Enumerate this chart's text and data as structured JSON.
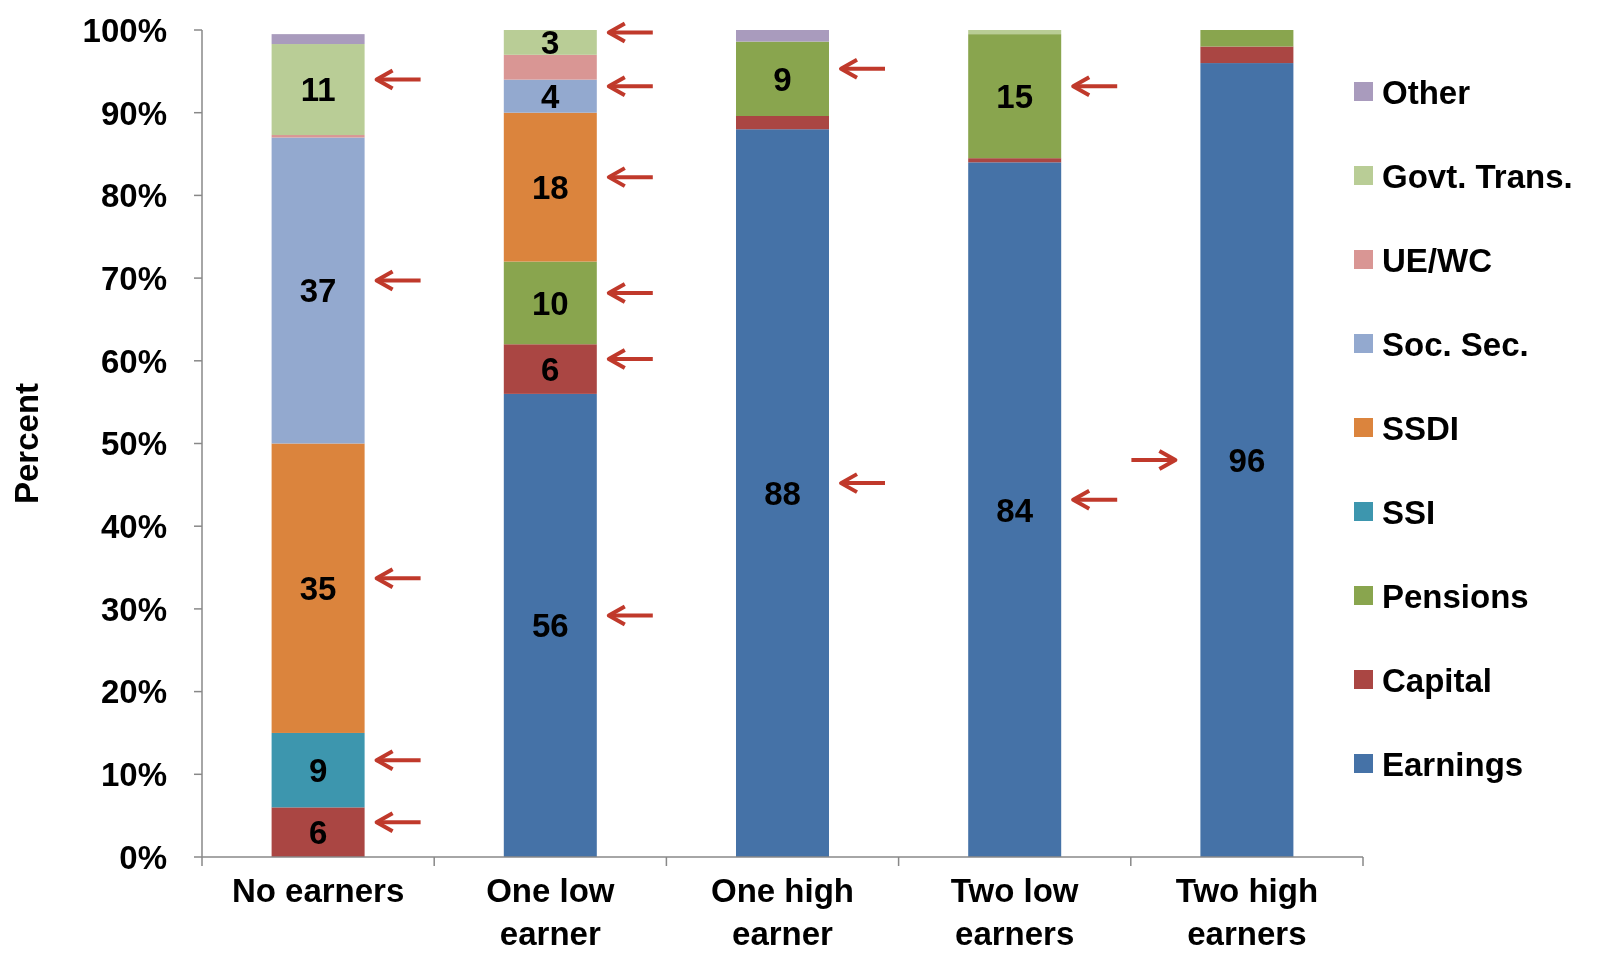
{
  "chart_data": {
    "type": "bar",
    "stacked": true,
    "ylabel": "Percent",
    "categories": [
      "No earners",
      "One low earner",
      "One high earner",
      "Two low earners",
      "Two high earners"
    ],
    "ylim": [
      0,
      100
    ],
    "yticks": [
      {
        "value": 0,
        "label": "0%"
      },
      {
        "value": 10,
        "label": "10%"
      },
      {
        "value": 20,
        "label": "20%"
      },
      {
        "value": 30,
        "label": "30%"
      },
      {
        "value": 40,
        "label": "40%"
      },
      {
        "value": 50,
        "label": "50%"
      },
      {
        "value": 60,
        "label": "60%"
      },
      {
        "value": 70,
        "label": "70%"
      },
      {
        "value": 80,
        "label": "80%"
      },
      {
        "value": 90,
        "label": "90%"
      },
      {
        "value": 100,
        "label": "100%"
      }
    ],
    "grid": false,
    "legend": "right",
    "series": [
      {
        "name": "Earnings",
        "color": "#4572a7",
        "values": [
          0,
          56,
          88,
          84,
          96
        ],
        "value_labels": [
          null,
          "56",
          "88",
          "84",
          "96"
        ]
      },
      {
        "name": "Capital",
        "color": "#aa4643",
        "values": [
          6,
          6,
          1.6,
          0.5,
          2
        ],
        "value_labels": [
          "6",
          "6",
          null,
          null,
          null
        ]
      },
      {
        "name": "Pensions",
        "color": "#89a54e",
        "values": [
          0,
          10,
          9,
          15,
          2
        ],
        "value_labels": [
          null,
          "10",
          "9",
          "15",
          null
        ]
      },
      {
        "name": "SSI",
        "color": "#3d96ae",
        "values": [
          9,
          0,
          0,
          0,
          0
        ],
        "value_labels": [
          "9",
          null,
          null,
          null,
          null
        ]
      },
      {
        "name": "SSDI",
        "color": "#db843d",
        "values": [
          35,
          18,
          0,
          0,
          0
        ],
        "value_labels": [
          "35",
          "18",
          null,
          null,
          null
        ]
      },
      {
        "name": "Soc. Sec.",
        "color": "#93a9cf",
        "values": [
          37,
          4,
          0,
          0,
          0
        ],
        "value_labels": [
          "37",
          "4",
          null,
          null,
          null
        ]
      },
      {
        "name": "UE/WC",
        "color": "#d99694",
        "values": [
          0.3,
          3,
          0,
          0,
          0
        ]
      },
      {
        "name": "Govt. Trans.",
        "color": "#b9cd96",
        "values": [
          11,
          3,
          0,
          0.5,
          0
        ],
        "value_labels": [
          "11",
          "3",
          null,
          null,
          null
        ]
      },
      {
        "name": "Other",
        "color": "#a99bbd",
        "values": [
          1.2,
          0,
          1.4,
          0,
          0
        ]
      }
    ]
  }
}
